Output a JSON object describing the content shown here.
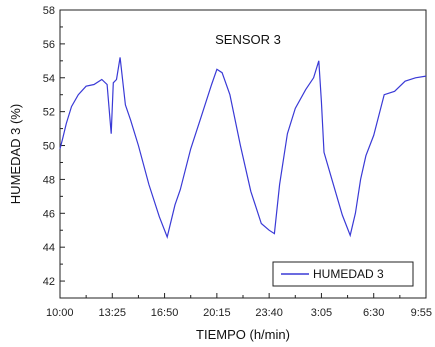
{
  "chart_data": {
    "type": "line",
    "title": "SENSOR 3",
    "xlabel": "TIEMPO (h/min)",
    "ylabel": "HUMEDAD 3 (%)",
    "x_tick_labels": [
      "10:00",
      "13:25",
      "16:50",
      "20:15",
      "23:40",
      "3:05",
      "6:30",
      "9:55"
    ],
    "xlim": [
      0,
      7
    ],
    "ylim": [
      41,
      58
    ],
    "y_ticks": [
      42,
      44,
      46,
      48,
      50,
      52,
      54,
      56,
      58
    ],
    "grid": false,
    "legend_position": "bottom-right",
    "series": [
      {
        "name": "HUMEDAD 3",
        "color": "#3a3ad6",
        "x": [
          0.0,
          0.05,
          0.12,
          0.22,
          0.35,
          0.5,
          0.65,
          0.8,
          0.9,
          0.98,
          1.02,
          1.08,
          1.15,
          1.25,
          1.35,
          1.5,
          1.7,
          1.9,
          2.05,
          2.2,
          2.3,
          2.5,
          2.7,
          2.9,
          3.0,
          3.1,
          3.25,
          3.45,
          3.65,
          3.85,
          4.0,
          4.1,
          4.2,
          4.35,
          4.5,
          4.7,
          4.85,
          4.95,
          5.0,
          5.05,
          5.2,
          5.4,
          5.55,
          5.65,
          5.75,
          5.85,
          6.0,
          6.2,
          6.4,
          6.6,
          6.8,
          7.0
        ],
        "y": [
          49.8,
          50.4,
          51.3,
          52.3,
          53.0,
          53.5,
          53.6,
          53.9,
          53.6,
          50.7,
          53.7,
          53.9,
          55.2,
          52.4,
          51.5,
          50.0,
          47.7,
          45.8,
          44.6,
          46.5,
          47.4,
          49.8,
          51.7,
          53.6,
          54.5,
          54.3,
          53.0,
          50.0,
          47.3,
          45.4,
          45.0,
          44.8,
          47.7,
          50.7,
          52.2,
          53.3,
          54.0,
          55.0,
          52.6,
          49.6,
          48.0,
          45.9,
          44.7,
          46.0,
          48.0,
          49.4,
          50.6,
          53.0,
          53.2,
          53.8,
          54.0,
          54.1
        ]
      }
    ]
  }
}
